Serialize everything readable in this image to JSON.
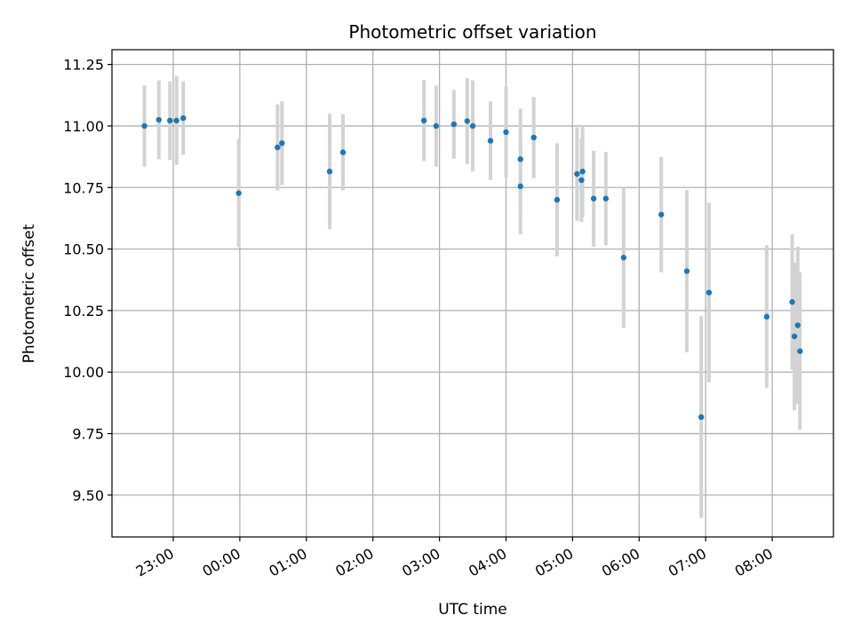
{
  "chart_data": {
    "type": "scatter",
    "title": "Photometric offset variation",
    "xlabel": "UTC time",
    "ylabel": "Photometric offset",
    "grid": true,
    "x_tick_labels": [
      "23:00",
      "00:00",
      "01:00",
      "02:00",
      "03:00",
      "04:00",
      "05:00",
      "06:00",
      "07:00",
      "08:00"
    ],
    "y_tick_labels": [
      "9.50",
      "9.75",
      "10.00",
      "10.25",
      "10.50",
      "10.75",
      "11.00",
      "11.25"
    ],
    "ylim": [
      9.33,
      11.31
    ],
    "point_color": "#1f77b4",
    "errorbar_color": "#d3d3d3",
    "series": [
      {
        "points": [
          {
            "time": "22:34",
            "y": 11.0,
            "err": 0.165
          },
          {
            "time": "22:47",
            "y": 11.025,
            "err": 0.16
          },
          {
            "time": "22:57",
            "y": 11.022,
            "err": 0.16
          },
          {
            "time": "23:03",
            "y": 11.022,
            "err": 0.18
          },
          {
            "time": "23:09",
            "y": 11.032,
            "err": 0.15
          },
          {
            "time": "23:59",
            "y": 10.727,
            "err": 0.22
          },
          {
            "time": "00:34",
            "y": 10.913,
            "err": 0.175
          },
          {
            "time": "00:38",
            "y": 10.93,
            "err": 0.17
          },
          {
            "time": "01:21",
            "y": 10.815,
            "err": 0.235
          },
          {
            "time": "01:33",
            "y": 10.893,
            "err": 0.155
          },
          {
            "time": "02:46",
            "y": 11.022,
            "err": 0.165
          },
          {
            "time": "02:57",
            "y": 11.0,
            "err": 0.165
          },
          {
            "time": "03:13",
            "y": 11.007,
            "err": 0.14
          },
          {
            "time": "03:25",
            "y": 11.02,
            "err": 0.175
          },
          {
            "time": "03:30",
            "y": 11.0,
            "err": 0.185
          },
          {
            "time": "03:46",
            "y": 10.94,
            "err": 0.16
          },
          {
            "time": "04:00",
            "y": 10.975,
            "err": 0.185
          },
          {
            "time": "04:13",
            "y": 10.865,
            "err": 0.205
          },
          {
            "time": "04:13",
            "y": 10.755,
            "err": 0.195
          },
          {
            "time": "04:25",
            "y": 10.953,
            "err": 0.165
          },
          {
            "time": "04:46",
            "y": 10.7,
            "err": 0.23
          },
          {
            "time": "05:04",
            "y": 10.805,
            "err": 0.19
          },
          {
            "time": "05:09",
            "y": 10.815,
            "err": 0.185
          },
          {
            "time": "05:08",
            "y": 10.78,
            "err": 0.17
          },
          {
            "time": "05:19",
            "y": 10.705,
            "err": 0.195
          },
          {
            "time": "05:30",
            "y": 10.705,
            "err": 0.19
          },
          {
            "time": "05:46",
            "y": 10.465,
            "err": 0.285
          },
          {
            "time": "06:20",
            "y": 10.64,
            "err": 0.235
          },
          {
            "time": "06:43",
            "y": 10.41,
            "err": 0.33
          },
          {
            "time": "06:56",
            "y": 9.817,
            "err": 0.41
          },
          {
            "time": "07:03",
            "y": 10.323,
            "err": 0.365
          },
          {
            "time": "07:55",
            "y": 10.225,
            "err": 0.29
          },
          {
            "time": "08:18",
            "y": 10.285,
            "err": 0.275
          },
          {
            "time": "08:20",
            "y": 10.145,
            "err": 0.3
          },
          {
            "time": "08:23",
            "y": 10.19,
            "err": 0.32
          },
          {
            "time": "08:25",
            "y": 10.085,
            "err": 0.32
          }
        ]
      }
    ]
  }
}
